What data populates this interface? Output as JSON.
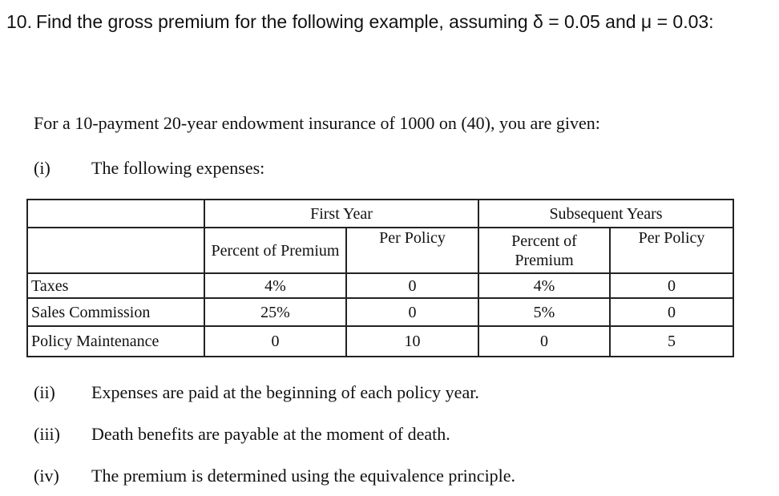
{
  "question": {
    "number": "10.",
    "text": "Find the gross premium for the following example, assuming δ = 0.05 and μ = 0.03:"
  },
  "intro": "For a 10-payment 20-year endowment insurance of 1000 on (40), you are given:",
  "items": [
    {
      "label": "(i)",
      "text": "The following expenses:"
    },
    {
      "label": "(ii)",
      "text": "Expenses are paid at the beginning of each policy year."
    },
    {
      "label": "(iii)",
      "text": "Death benefits are payable at the moment of death."
    },
    {
      "label": "(iv)",
      "text": "The premium is determined using the equivalence principle."
    }
  ],
  "table": {
    "groups": [
      "First Year",
      "Subsequent Years"
    ],
    "subheaders": [
      "Percent of Premium",
      "Per Policy",
      "Percent of Premium",
      "Per Policy"
    ],
    "rows": [
      [
        "Taxes",
        "4%",
        "0",
        "4%",
        "0"
      ],
      [
        "Sales Commission",
        "25%",
        "0",
        "5%",
        "0"
      ],
      [
        "Policy Maintenance",
        "0",
        "10",
        "0",
        "5"
      ]
    ]
  }
}
